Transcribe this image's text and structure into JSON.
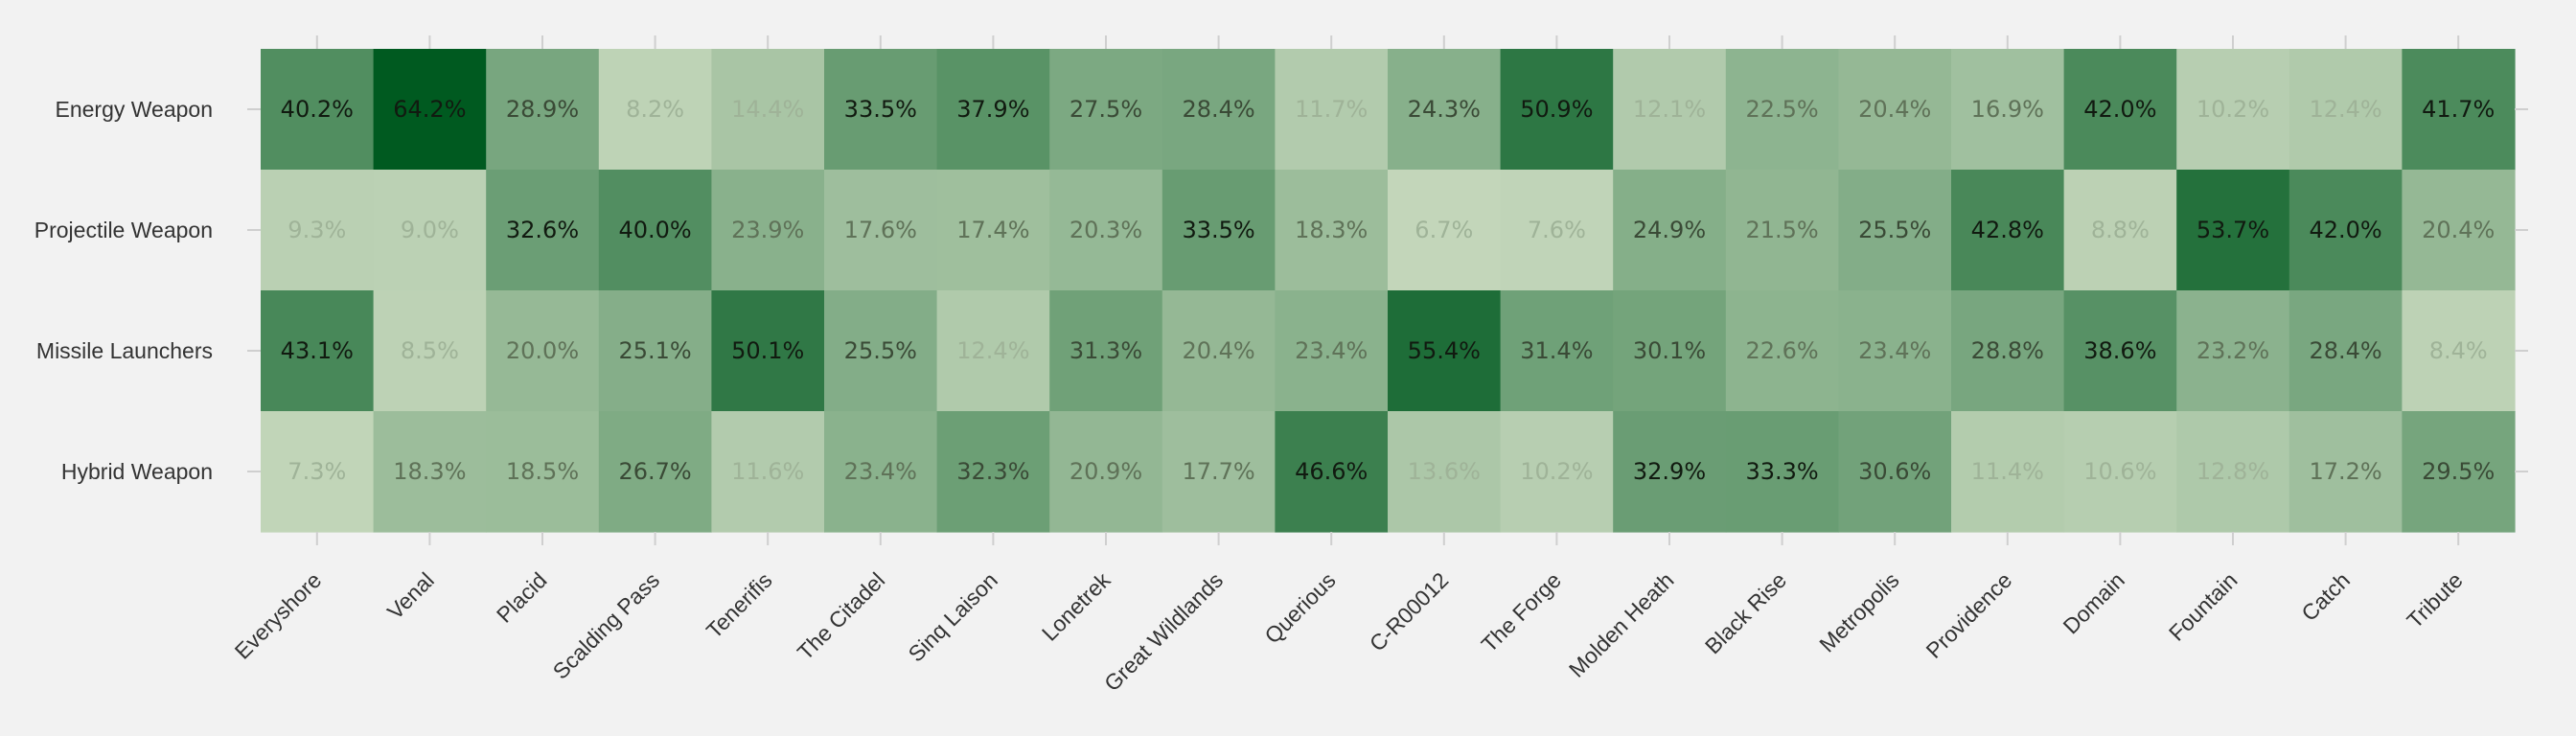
{
  "chart_data": {
    "type": "heatmap",
    "title": "",
    "xlabel": "",
    "ylabel": "",
    "rows": [
      "Energy Weapon",
      "Projectile Weapon",
      "Missile Launchers",
      "Hybrid Weapon"
    ],
    "columns": [
      "Everyshore",
      "Venal",
      "Placid",
      "Scalding Pass",
      "Tenerifis",
      "The Citadel",
      "Sinq Laison",
      "Lonetrek",
      "Great Wildlands",
      "Querious",
      "C-R00012",
      "The Forge",
      "Molden Heath",
      "Black Rise",
      "Metropolis",
      "Providence",
      "Domain",
      "Fountain",
      "Catch",
      "Tribute"
    ],
    "values": [
      [
        40.2,
        64.2,
        28.9,
        8.2,
        14.4,
        33.5,
        37.9,
        27.5,
        28.4,
        11.7,
        24.3,
        50.9,
        12.1,
        22.5,
        20.4,
        16.9,
        42.0,
        10.2,
        12.4,
        41.7
      ],
      [
        9.3,
        9.0,
        32.6,
        40.0,
        23.9,
        17.6,
        17.4,
        20.3,
        33.5,
        18.3,
        6.7,
        7.6,
        24.9,
        21.5,
        25.5,
        42.8,
        8.8,
        53.7,
        42.0,
        20.4
      ],
      [
        43.1,
        8.5,
        20.0,
        25.1,
        50.1,
        25.5,
        12.4,
        31.3,
        20.4,
        23.4,
        55.4,
        31.4,
        30.1,
        22.6,
        23.4,
        28.8,
        38.6,
        23.2,
        28.4,
        8.4
      ],
      [
        7.3,
        18.3,
        18.5,
        26.7,
        11.6,
        23.4,
        32.3,
        20.9,
        17.7,
        46.6,
        13.6,
        10.2,
        32.9,
        33.3,
        30.6,
        11.4,
        10.6,
        12.8,
        17.2,
        29.5
      ]
    ],
    "labels": [
      [
        "40.2%",
        "64.2%",
        "28.9%",
        "8.2%",
        "14.4%",
        "33.5%",
        "37.9%",
        "27.5%",
        "28.4%",
        "11.7%",
        "24.3%",
        "50.9%",
        "12.1%",
        "22.5%",
        "20.4%",
        "16.9%",
        "42.0%",
        "10.2%",
        "12.4%",
        "41.7%"
      ],
      [
        "9.3%",
        "9.0%",
        "32.6%",
        "40.0%",
        "23.9%",
        "17.6%",
        "17.4%",
        "20.3%",
        "33.5%",
        "18.3%",
        "6.7%",
        "7.6%",
        "24.9%",
        "21.5%",
        "25.5%",
        "42.8%",
        "8.8%",
        "53.7%",
        "42.0%",
        "20.4%"
      ],
      [
        "43.1%",
        "8.5%",
        "20.0%",
        "25.1%",
        "50.1%",
        "25.5%",
        "12.4%",
        "31.3%",
        "20.4%",
        "23.4%",
        "55.4%",
        "31.4%",
        "30.1%",
        "22.6%",
        "23.4%",
        "28.8%",
        "38.6%",
        "23.2%",
        "28.4%",
        "8.4%"
      ],
      [
        "7.3%",
        "18.3%",
        "18.5%",
        "26.7%",
        "11.6%",
        "23.4%",
        "32.3%",
        "20.9%",
        "17.7%",
        "46.6%",
        "13.6%",
        "10.2%",
        "32.9%",
        "33.3%",
        "30.6%",
        "11.4%",
        "10.6%",
        "12.8%",
        "17.2%",
        "29.5%"
      ]
    ],
    "color_scale": {
      "min": 6.7,
      "max": 64.2,
      "low_color": "#c3d6ba",
      "high_color": "#005a20"
    },
    "grid": false,
    "legend": "none"
  }
}
